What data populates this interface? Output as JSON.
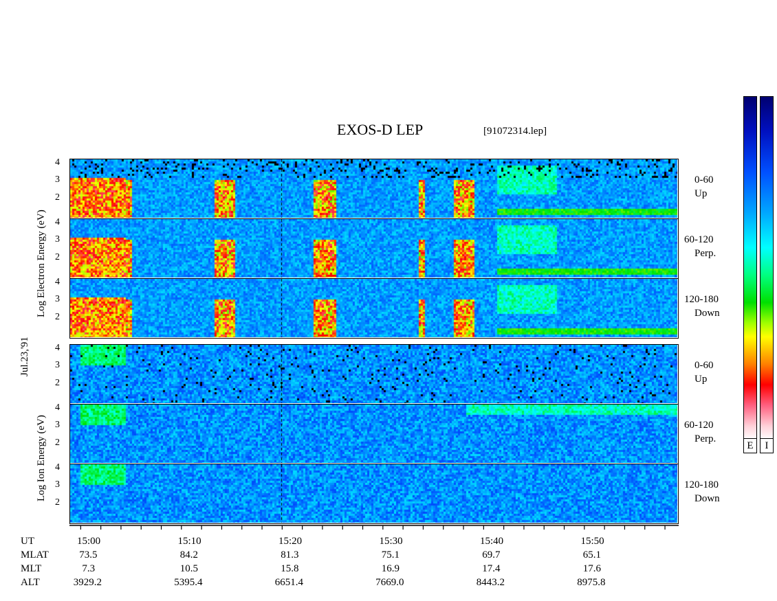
{
  "header": {
    "title": "EXOS-D LEP",
    "file": "[91072314.lep]"
  },
  "date_label": "Jul.23,'91",
  "chart_data": {
    "type": "heatmap",
    "title": "EXOS-D LEP",
    "subtitle": "[91072314.lep]",
    "x_ticks": [
      "15:00",
      "15:10",
      "15:20",
      "15:30",
      "15:40",
      "15:50"
    ],
    "groups": [
      {
        "ylabel": "Log Electron Energy (eV)",
        "panels": [
          {
            "pitch_angle": "0-60",
            "direction": "Up"
          },
          {
            "pitch_angle": "60-120",
            "direction": "Perp."
          },
          {
            "pitch_angle": "120-180",
            "direction": "Down"
          }
        ]
      },
      {
        "ylabel": "Log Ion Energy (eV)",
        "panels": [
          {
            "pitch_angle": "0-60",
            "direction": "Up"
          },
          {
            "pitch_angle": "60-120",
            "direction": "Perp."
          },
          {
            "pitch_angle": "120-180",
            "direction": "Down"
          }
        ]
      }
    ],
    "y_ticks": [
      "4",
      "3",
      "2"
    ],
    "colorbars": [
      "E",
      "I"
    ],
    "ephemeris": {
      "labels": [
        "UT",
        "MLAT",
        "MLT",
        "ALT"
      ],
      "MLAT": [
        "73.5",
        "84.2",
        "81.3",
        "75.1",
        "69.7",
        "65.1"
      ],
      "MLT": [
        "7.3",
        "10.5",
        "15.8",
        "16.9",
        "17.4",
        "17.6"
      ],
      "ALT": [
        "3929.2",
        "5395.4",
        "6651.4",
        "7669.0",
        "8443.2",
        "8975.8"
      ]
    }
  }
}
